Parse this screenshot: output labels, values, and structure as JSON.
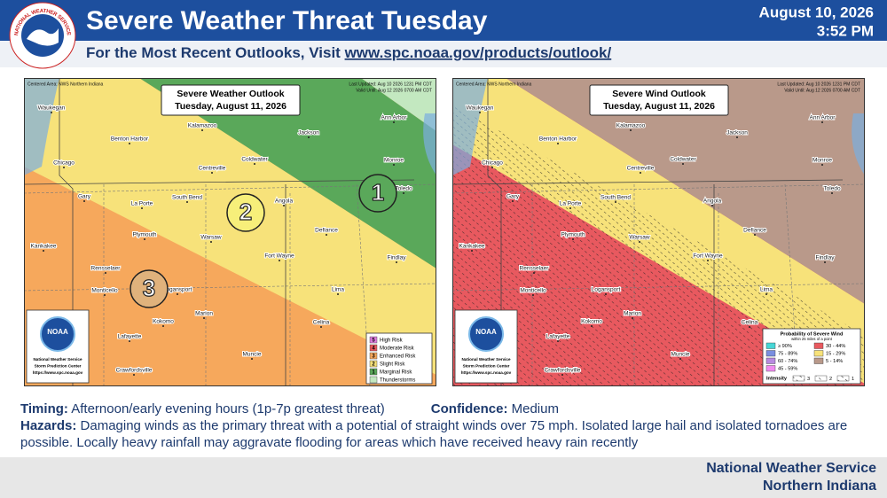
{
  "header": {
    "title": "Severe Weather Threat Tuesday",
    "date": "August 10, 2026",
    "time": "3:52 PM",
    "subtitle": "For the Most Recent Outlooks, Visit ",
    "url": "www.spc.noaa.gov/products/outlook/",
    "logo_text": "NATIONAL WEATHER SERVICE"
  },
  "maps": [
    {
      "title": "Severe Weather Outlook",
      "date": "Tuesday, August 11, 2026",
      "centered": "Centered Area: NWS Northern Indiana",
      "updated": "Last Updated: Aug 10 2026 1231 PM CDT",
      "valid": "Valid Until: Aug 12 2026 0700 AM CDT",
      "risk_labels": [
        "1",
        "2",
        "3"
      ],
      "legend": [
        {
          "key": "5",
          "label": "High Risk",
          "color": "#e07ee0"
        },
        {
          "key": "4",
          "label": "Moderate Risk",
          "color": "#e8595f"
        },
        {
          "key": "3",
          "label": "Enhanced Risk",
          "color": "#f6a85c"
        },
        {
          "key": "2",
          "label": "Slight Risk",
          "color": "#f7e27a"
        },
        {
          "key": "1",
          "label": "Marginal Risk",
          "color": "#5aa85a"
        },
        {
          "label": "Thunderstorms",
          "color": "#c3e8c0"
        }
      ]
    },
    {
      "title": "Severe Wind Outlook",
      "date": "Tuesday, August 11, 2026",
      "centered": "Centered Area: NWS Northern Indiana",
      "updated": "Last Updated: Aug 10 2026 1231 PM CDT",
      "valid": "Valid Until: Aug 12 2026 0700 AM CDT",
      "legend": {
        "title": "Probability of Severe Wind",
        "subtitle": "within 25 miles of a point",
        "entries": [
          {
            "label": "≥ 90%",
            "color": "#47d6d6"
          },
          {
            "label": "30 - 44%",
            "color": "#e8595f"
          },
          {
            "label": "75 - 89%",
            "color": "#7a8fe0"
          },
          {
            "label": "15 - 29%",
            "color": "#f7e27a"
          },
          {
            "label": "60 - 74%",
            "color": "#b88ae0"
          },
          {
            "label": "5 - 14%",
            "color": "#b9998a"
          },
          {
            "label": "45 - 59%",
            "color": "#f08cf0"
          }
        ],
        "intensity": "Intensity",
        "intensity_levels": [
          "3",
          "2",
          "1"
        ]
      }
    }
  ],
  "cities": [
    "Waukegan",
    "Benton Harbor",
    "Kalamazoo",
    "Jackson",
    "Ann Arbor",
    "Chicago",
    "Centreville",
    "Coldwater",
    "Monroe",
    "Gary",
    "South Bend",
    "La Porte",
    "Angola",
    "Toledo",
    "Kankakee",
    "Plymouth",
    "Warsaw",
    "Defiance",
    "Fort Wayne",
    "Findlay",
    "Rensselaer",
    "Monticello",
    "Logansport",
    "Lima",
    "Marion",
    "Kokomo",
    "Celina",
    "Lafayette",
    "Muncie",
    "Crawfordsville"
  ],
  "logo": {
    "name": "NOAA",
    "lines": [
      "National Weather Service",
      "Storm Prediction Center",
      "https://www.spc.noaa.gov"
    ]
  },
  "details": {
    "timing_label": "Timing:",
    "timing": "Afternoon/early evening hours (1p-7p greatest threat)",
    "confidence_label": "Confidence:",
    "confidence": "Medium",
    "hazards_label": "Hazards:",
    "hazards": "Damaging winds as the primary threat with a potential of straight winds over 75 mph.  Isolated large hail and isolated tornadoes are possible.  Locally heavy rainfall may aggravate flooding for areas which have received heavy rain recently"
  },
  "footer": {
    "office": "National Weather Service",
    "area": "Northern Indiana"
  }
}
